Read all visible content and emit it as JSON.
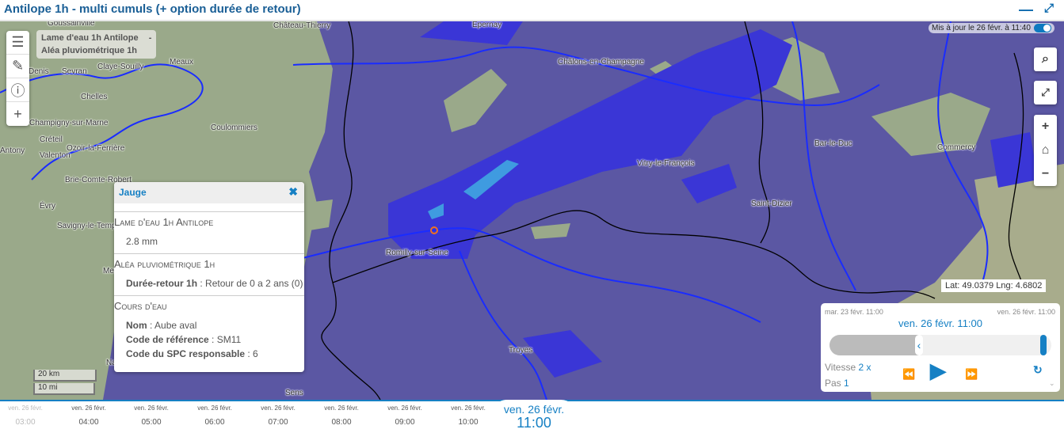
{
  "header": {
    "title": "Antilope 1h - multi cumuls (+ option durée de retour)",
    "minimize_icon": "minus-icon",
    "expand_icon": "expand-icon"
  },
  "map": {
    "legend": [
      "Lame d'eau 1h Antilope",
      "-",
      "Aléa pluviométrique 1h"
    ],
    "update_text": "Mis à jour le 26 févr. à 11:40",
    "auto_update_on": true,
    "cities": [
      "Goussainville",
      "Château-Thierry",
      "Epernay",
      "Meaux",
      "Denis",
      "Sevran",
      "Claye-Souilly",
      "Chelles",
      "Champigny-sur-Marne",
      "Créteil",
      "Coulommiers",
      "Ozoir-la-Ferrière",
      "Valenton",
      "Brie-Comte-Robert",
      "Évry",
      "Savigny-le-Temple",
      "Châlons-en-Champagne",
      "Vitry-le-François",
      "Bar-le-Duc",
      "Commercy",
      "Saint-Dizier",
      "Romilly-sur-Seine",
      "Troyes",
      "Sens",
      "Antony",
      "Melun",
      "Nangis"
    ],
    "scale": {
      "km": "20 km",
      "mi": "10 mi"
    },
    "coords": "Lat: 49.0379 Lng: 4.6802",
    "colors": {
      "base_rain": "#5b57a3",
      "medium_rain": "#3a36d6",
      "heavy_rain": "#3f9be0",
      "land": "#9aa98a",
      "river": "#1a2cff"
    }
  },
  "popup": {
    "title": "Jauge",
    "sections": [
      {
        "heading": "Lame d'eau 1h Antilope",
        "value": "2.8 mm"
      },
      {
        "heading": "Aléa pluviométrique 1h",
        "rows": [
          {
            "key": "Durée-retour 1h",
            "value": "Retour de 0 a 2 ans (0)"
          }
        ]
      },
      {
        "heading": "Cours d'eau",
        "rows": [
          {
            "key": "Nom",
            "value": "Aube aval"
          },
          {
            "key": "Code de référence",
            "value": "SM11"
          },
          {
            "key": "Code du SPC responsable",
            "value": "6"
          }
        ]
      }
    ]
  },
  "player": {
    "start": "mar. 23 févr. 11:00",
    "end": "ven. 26 févr. 11:00",
    "current": "ven. 26 févr. 11:00",
    "speed_label": "Vitesse",
    "speed_value": "2 x",
    "step_label": "Pas",
    "step_value": "1",
    "range_start_fraction": 0.38,
    "range_end_fraction": 1.0
  },
  "timeline": {
    "ticks": [
      {
        "date": "ven. 26 févr.",
        "time": "03:00"
      },
      {
        "date": "ven. 26 févr.",
        "time": "04:00"
      },
      {
        "date": "ven. 26 févr.",
        "time": "05:00"
      },
      {
        "date": "ven. 26 févr.",
        "time": "06:00"
      },
      {
        "date": "ven. 26 févr.",
        "time": "07:00"
      },
      {
        "date": "ven. 26 févr.",
        "time": "08:00"
      },
      {
        "date": "ven. 26 févr.",
        "time": "09:00"
      },
      {
        "date": "ven. 26 févr.",
        "time": "10:00"
      }
    ],
    "current": {
      "date": "ven. 26 févr.",
      "time": "11:00"
    }
  }
}
